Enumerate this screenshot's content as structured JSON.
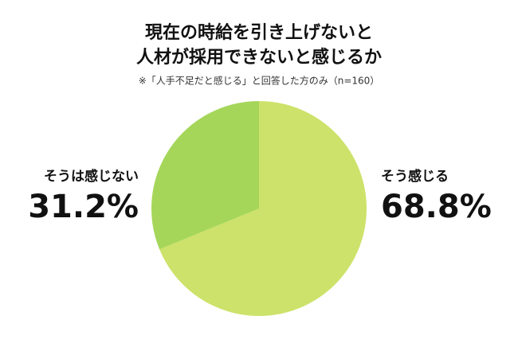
{
  "chart_data": {
    "type": "pie",
    "title": [
      "現在の時給を引き上げないと",
      "人材が採用できないと感じるか"
    ],
    "subtitle": "※「人手不足だと感じる」と回答した方のみ（n=160）",
    "categories": [
      "そう感じる",
      "そうは感じない"
    ],
    "values": [
      68.8,
      31.2
    ],
    "value_labels": [
      "68.8%",
      "31.2%"
    ],
    "colors": [
      "#cde26a",
      "#a5d65a"
    ]
  }
}
